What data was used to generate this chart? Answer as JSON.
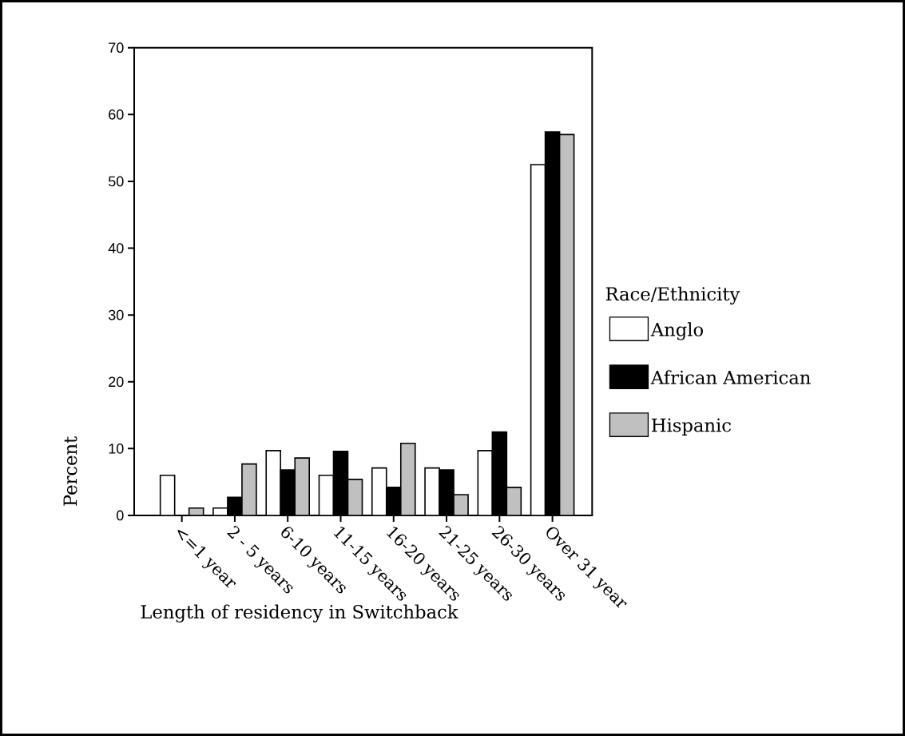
{
  "chart_data": {
    "type": "bar",
    "xlabel": "Length of residency in Switchback",
    "ylabel": "Percent",
    "legend_title": "Race/Ethnicity",
    "categories": [
      "<=1 year",
      "2 - 5 years",
      "6-10 years",
      "11-15 years",
      "16-20 years",
      "21-25 years",
      "26-30 years",
      "Over 31 year"
    ],
    "series": [
      {
        "name": "Anglo",
        "color": "#ffffff",
        "values": [
          6.0,
          1.1,
          9.7,
          6.0,
          7.1,
          7.1,
          9.7,
          52.5
        ]
      },
      {
        "name": "African American",
        "color": "#000000",
        "values": [
          0,
          2.7,
          6.8,
          9.6,
          4.2,
          6.8,
          12.5,
          57.4
        ]
      },
      {
        "name": "Hispanic",
        "color": "#c0c0c0",
        "values": [
          1.1,
          7.7,
          8.6,
          5.4,
          10.8,
          3.1,
          4.2,
          57.0
        ]
      }
    ],
    "ylim": [
      0,
      70
    ],
    "yticks": [
      0,
      10,
      20,
      30,
      40,
      50,
      60,
      70
    ],
    "grid": false,
    "legend": "right"
  }
}
